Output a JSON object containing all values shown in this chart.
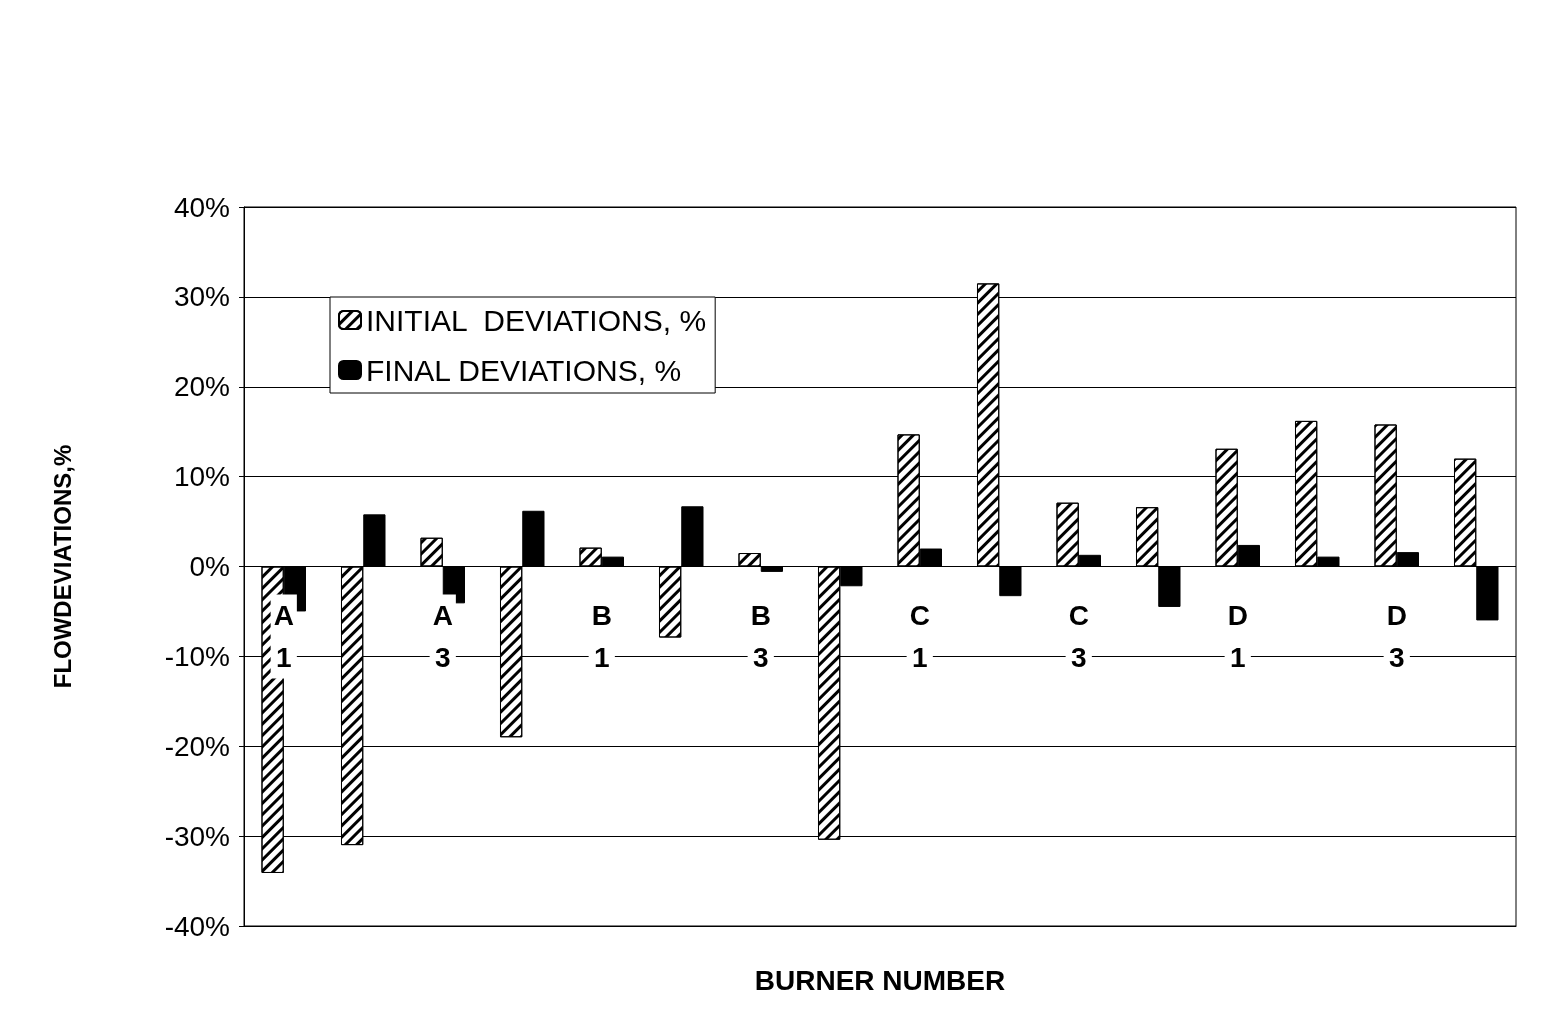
{
  "chart_data": {
    "type": "bar",
    "xlabel": "BURNER NUMBER",
    "ylabel": "FLOWDEVIATIONS,%",
    "categories": [
      "A\n1",
      null,
      "A\n3",
      null,
      "B\n1",
      null,
      "B\n3",
      null,
      "C\n1",
      null,
      "C\n3",
      null,
      "D\n1",
      null,
      "D\n3",
      null
    ],
    "series": [
      {
        "name": "INITIAL  DEVIATIONS, %",
        "color": "#ffffff",
        "values": [
          -34.1,
          -31.0,
          3.2,
          -19.0,
          2.1,
          -7.9,
          1.5,
          -30.4,
          14.7,
          31.5,
          7.1,
          6.6,
          13.1,
          16.2,
          15.8,
          12.0
        ]
      },
      {
        "name": "FINAL DEVIATIONS, %",
        "color": "#000000",
        "values": [
          -5.0,
          5.8,
          -4.1,
          6.2,
          1.1,
          6.7,
          -0.6,
          -2.2,
          2.0,
          -3.3,
          1.3,
          -4.5,
          2.4,
          1.1,
          1.6,
          -6.0
        ]
      }
    ],
    "ylim": [
      -40,
      40
    ],
    "yticks": [
      {
        "value": -40,
        "label": "-40%"
      },
      {
        "value": -30,
        "label": "-30%"
      },
      {
        "value": -20,
        "label": "-20%"
      },
      {
        "value": -10,
        "label": "-10%"
      },
      {
        "value": 0,
        "label": "0%"
      },
      {
        "value": 10,
        "label": "10%"
      },
      {
        "value": 20,
        "label": "20%"
      },
      {
        "value": 30,
        "label": "30%"
      },
      {
        "value": 40,
        "label": "40%"
      }
    ],
    "grid": "y",
    "legend": "top left"
  }
}
